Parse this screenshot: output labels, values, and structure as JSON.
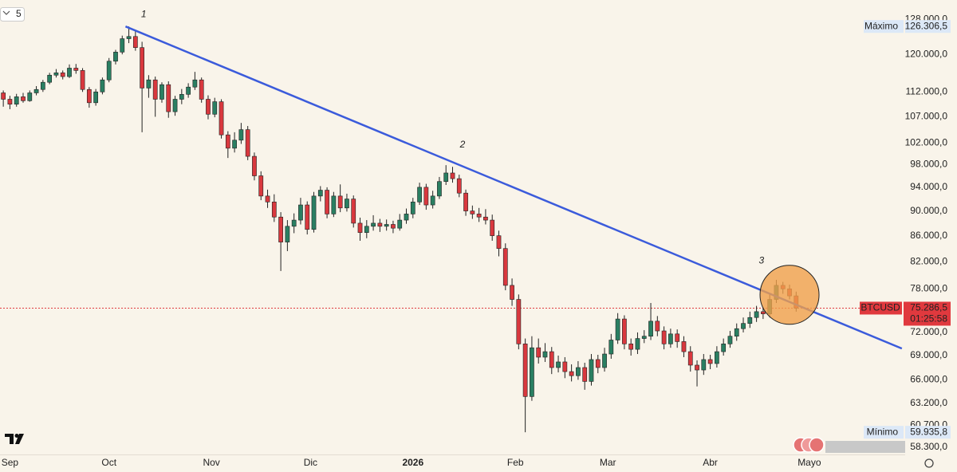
{
  "chart_data": {
    "type": "candlestick",
    "toolbar_label": "5",
    "up_color": "#2a7f62",
    "down_color": "#d9383e",
    "xlim": [
      -3,
      271
    ],
    "ylim": [
      57540,
      132600
    ],
    "log_scale": true,
    "xticks": [
      {
        "value": 0,
        "label": "Sep"
      },
      {
        "value": 30,
        "label": "Oct"
      },
      {
        "value": 61,
        "label": "Nov"
      },
      {
        "value": 91,
        "label": "Dic"
      },
      {
        "value": 122,
        "label": "2026"
      },
      {
        "value": 153,
        "label": "Feb"
      },
      {
        "value": 181,
        "label": "Mar"
      },
      {
        "value": 212,
        "label": "Abr"
      },
      {
        "value": 242,
        "label": "Mayo"
      }
    ],
    "yticks": [
      {
        "value": 128000,
        "label": "128.000,0"
      },
      {
        "value": 120000,
        "label": "120.000,0"
      },
      {
        "value": 112000,
        "label": "112.000,0"
      },
      {
        "value": 107000,
        "label": "107.000,0"
      },
      {
        "value": 102000,
        "label": "102.000,0"
      },
      {
        "value": 98000,
        "label": "98.000,0"
      },
      {
        "value": 94000,
        "label": "94.000,0"
      },
      {
        "value": 90000,
        "label": "90.000,0"
      },
      {
        "value": 86000,
        "label": "86.000,0"
      },
      {
        "value": 82000,
        "label": "82.000,0"
      },
      {
        "value": 78000,
        "label": "78.000,0"
      },
      {
        "value": 72000,
        "label": "72.000,0"
      },
      {
        "value": 69000,
        "label": "69.000,0"
      },
      {
        "value": 66000,
        "label": "66.000,0"
      },
      {
        "value": 63200,
        "label": "63.200,0"
      },
      {
        "value": 60700,
        "label": "60.700,0"
      },
      {
        "value": 58300,
        "label": "58.300,0"
      }
    ],
    "x": [
      -2,
      0,
      2,
      4,
      6,
      8,
      10,
      12,
      14,
      16,
      18,
      20,
      22,
      24,
      26,
      28,
      30,
      32,
      34,
      36,
      38,
      40,
      42,
      44,
      46,
      48,
      50,
      52,
      54,
      56,
      58,
      60,
      62,
      64,
      66,
      68,
      70,
      72,
      74,
      76,
      78,
      80,
      82,
      84,
      86,
      88,
      90,
      92,
      94,
      96,
      98,
      100,
      102,
      104,
      106,
      108,
      110,
      112,
      114,
      116,
      118,
      120,
      122,
      124,
      126,
      128,
      130,
      132,
      134,
      136,
      138,
      140,
      142,
      144,
      146,
      148,
      150,
      152,
      154,
      156,
      158,
      160,
      162,
      164,
      166,
      168,
      170,
      172,
      174,
      176,
      178,
      180,
      182,
      184,
      186,
      188,
      190,
      192,
      194,
      196,
      198,
      200,
      202,
      204,
      206,
      208,
      210,
      212,
      214,
      216,
      218,
      220,
      222,
      224,
      226,
      228,
      230,
      232,
      234,
      236,
      238
    ],
    "ohlc": [
      [
        111800,
        112300,
        109000,
        110500
      ],
      [
        110500,
        111200,
        108500,
        109500
      ],
      [
        109500,
        111600,
        109000,
        111000
      ],
      [
        111000,
        111800,
        109800,
        110200
      ],
      [
        110200,
        112300,
        110000,
        111800
      ],
      [
        111800,
        113200,
        111300,
        112500
      ],
      [
        112500,
        114500,
        112000,
        114000
      ],
      [
        114000,
        116000,
        113600,
        115500
      ],
      [
        115500,
        116800,
        115000,
        116000
      ],
      [
        116000,
        116500,
        114600,
        115200
      ],
      [
        115200,
        117800,
        114900,
        117000
      ],
      [
        117000,
        117900,
        115800,
        116500
      ],
      [
        116500,
        117000,
        112000,
        112500
      ],
      [
        112500,
        113000,
        108800,
        109800
      ],
      [
        109800,
        112600,
        109200,
        112000
      ],
      [
        112000,
        115000,
        111500,
        114500
      ],
      [
        114500,
        119200,
        114000,
        118500
      ],
      [
        118500,
        121000,
        117800,
        120500
      ],
      [
        120500,
        124200,
        120000,
        123500
      ],
      [
        123500,
        126306.5,
        122500,
        124000
      ],
      [
        124000,
        125200,
        120800,
        121500
      ],
      [
        121500,
        122800,
        104000,
        112800
      ],
      [
        112800,
        115500,
        110800,
        114500
      ],
      [
        114500,
        115200,
        107000,
        110500
      ],
      [
        110500,
        114000,
        109800,
        113500
      ],
      [
        113500,
        114200,
        106800,
        108000
      ],
      [
        108000,
        111200,
        107200,
        110500
      ],
      [
        110500,
        112600,
        109500,
        111500
      ],
      [
        111500,
        113800,
        110800,
        113000
      ],
      [
        113000,
        116200,
        112400,
        114500
      ],
      [
        114500,
        115000,
        109800,
        110500
      ],
      [
        110500,
        111300,
        106500,
        107500
      ],
      [
        107500,
        110800,
        106900,
        110000
      ],
      [
        110000,
        110500,
        102800,
        103500
      ],
      [
        103500,
        104200,
        99200,
        101000
      ],
      [
        101000,
        104000,
        100200,
        102500
      ],
      [
        102500,
        105800,
        101800,
        104500
      ],
      [
        104500,
        105200,
        98800,
        99500
      ],
      [
        99500,
        100200,
        95200,
        96000
      ],
      [
        96000,
        96800,
        91800,
        92500
      ],
      [
        92500,
        93600,
        90500,
        91500
      ],
      [
        91500,
        92800,
        88200,
        89000
      ],
      [
        89000,
        89800,
        80600,
        85000
      ],
      [
        85000,
        88500,
        83600,
        87500
      ],
      [
        87500,
        89600,
        86400,
        88500
      ],
      [
        88500,
        92200,
        87800,
        91000
      ],
      [
        91000,
        91600,
        86200,
        87000
      ],
      [
        87000,
        93200,
        86500,
        92500
      ],
      [
        92500,
        94200,
        91600,
        93500
      ],
      [
        93500,
        94000,
        88800,
        89500
      ],
      [
        89500,
        93200,
        89000,
        92500
      ],
      [
        92500,
        94500,
        89800,
        90500
      ],
      [
        90500,
        92900,
        89900,
        92000
      ],
      [
        92000,
        92600,
        87300,
        88000
      ],
      [
        88000,
        88900,
        85200,
        86500
      ],
      [
        86500,
        88500,
        85600,
        87500
      ],
      [
        87500,
        89300,
        86800,
        88000
      ],
      [
        88000,
        88700,
        86600,
        87500
      ],
      [
        87500,
        88600,
        86800,
        87800
      ],
      [
        87800,
        88400,
        86400,
        87200
      ],
      [
        87200,
        89500,
        86800,
        88500
      ],
      [
        88500,
        90400,
        87900,
        89500
      ],
      [
        89500,
        92200,
        88800,
        91500
      ],
      [
        91500,
        94800,
        91000,
        94000
      ],
      [
        94000,
        94600,
        90200,
        91000
      ],
      [
        91000,
        93400,
        90400,
        92500
      ],
      [
        92500,
        95800,
        92000,
        95000
      ],
      [
        95000,
        97900,
        94400,
        96500
      ],
      [
        96500,
        97600,
        94800,
        95500
      ],
      [
        95500,
        96200,
        92300,
        93000
      ],
      [
        93000,
        93600,
        89200,
        90000
      ],
      [
        90000,
        90900,
        88700,
        89500
      ],
      [
        89500,
        90500,
        88200,
        89000
      ],
      [
        89000,
        90300,
        87800,
        88500
      ],
      [
        88500,
        89400,
        85200,
        86000
      ],
      [
        86000,
        86800,
        82800,
        84000
      ],
      [
        84000,
        84800,
        77800,
        78500
      ],
      [
        78500,
        79500,
        75600,
        76500
      ],
      [
        76500,
        77200,
        69800,
        70500
      ],
      [
        70500,
        71200,
        59935.8,
        64000
      ],
      [
        64000,
        71500,
        63500,
        70000
      ],
      [
        70000,
        71200,
        68000,
        68800
      ],
      [
        68800,
        70600,
        68200,
        69500
      ],
      [
        69500,
        70100,
        66700,
        67500
      ],
      [
        67500,
        69000,
        66900,
        68200
      ],
      [
        68200,
        68800,
        66200,
        67000
      ],
      [
        67000,
        67900,
        65800,
        66500
      ],
      [
        66500,
        68300,
        66000,
        67500
      ],
      [
        67500,
        68100,
        64800,
        65800
      ],
      [
        65800,
        69200,
        65300,
        68500
      ],
      [
        68500,
        69100,
        66800,
        67500
      ],
      [
        67500,
        70000,
        67000,
        69200
      ],
      [
        69200,
        71800,
        68600,
        71000
      ],
      [
        71000,
        74600,
        70500,
        73800
      ],
      [
        73800,
        74300,
        69800,
        70500
      ],
      [
        70500,
        71200,
        69000,
        69800
      ],
      [
        69800,
        72000,
        69200,
        71200
      ],
      [
        71200,
        72300,
        70600,
        71500
      ],
      [
        71500,
        76000,
        71000,
        73500
      ],
      [
        73500,
        74200,
        71500,
        72200
      ],
      [
        72200,
        72800,
        69800,
        70500
      ],
      [
        70500,
        72500,
        70000,
        71800
      ],
      [
        71800,
        72400,
        70000,
        70800
      ],
      [
        70800,
        71500,
        68800,
        69500
      ],
      [
        69500,
        70200,
        67000,
        67800
      ],
      [
        67800,
        68400,
        65200,
        67200
      ],
      [
        67200,
        69200,
        66600,
        68500
      ],
      [
        68500,
        69100,
        67300,
        68000
      ],
      [
        68000,
        70200,
        67500,
        69500
      ],
      [
        69500,
        71200,
        69000,
        70500
      ],
      [
        70500,
        72200,
        70000,
        71500
      ],
      [
        71500,
        73200,
        70900,
        72500
      ],
      [
        72500,
        74000,
        72000,
        73200
      ],
      [
        73200,
        74800,
        72600,
        74000
      ],
      [
        74000,
        75600,
        73400,
        74800
      ],
      [
        74800,
        75400,
        73800,
        74500
      ],
      [
        74500,
        77200,
        74000,
        76500
      ],
      [
        76500,
        79300,
        76000,
        78500
      ],
      [
        78500,
        79000,
        77300,
        78000
      ],
      [
        78000,
        78600,
        76500,
        77000
      ],
      [
        77000,
        77600,
        74800,
        75286.5
      ]
    ],
    "trendline": {
      "x": [
        35,
        270
      ],
      "y": [
        126306.5,
        69900
      ],
      "color": "#3b5bdb"
    },
    "highlight": {
      "x": 236,
      "y": 77150,
      "color": "#f0a04b"
    },
    "annotations": [
      {
        "text": "1",
        "x": 40.5,
        "y": 129100
      },
      {
        "text": "2",
        "x": 137,
        "y": 101600
      },
      {
        "text": "3",
        "x": 227.5,
        "y": 82100
      }
    ],
    "annotation_color": "#e04848",
    "high_marker": {
      "label": "Máximo",
      "value": 126306.5,
      "value_label": "126.306,5"
    },
    "low_marker": {
      "label": "Mínimo",
      "value": 59935.8,
      "value_label": "59.935,8"
    },
    "last_price": {
      "symbol": "BTCUSD",
      "value": 75286.5,
      "value_label": "75.286,5",
      "countdown": "01:25:58",
      "color": "#e0393e"
    }
  }
}
